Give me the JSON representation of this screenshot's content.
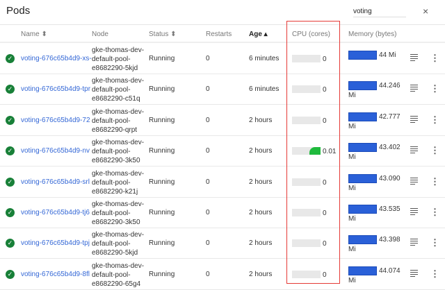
{
  "title": "Pods",
  "search": {
    "value": "voting"
  },
  "close_icon": "×",
  "columns": {
    "name": "Name ⬍",
    "node": "Node",
    "status": "Status ⬍",
    "restarts": "Restarts",
    "age": "Age ▴",
    "cpu": "CPU (cores)",
    "memory": "Memory (bytes)"
  },
  "colors": {
    "link": "#3367d6",
    "ok": "#188038",
    "cpu_fill": "#1fba3d",
    "memory_bar": "#2a60d8",
    "highlight": "#e53935"
  },
  "rows": [
    {
      "name": "voting-676c65b4d9-xs-",
      "node": "gke-thomas-dev-default-pool-e8682290-5kjd",
      "status": "Running",
      "restarts": "0",
      "age": "6 minutes",
      "cpu": "0",
      "cpu_fraction": 0,
      "mem1": "44 Mi",
      "mem2": ""
    },
    {
      "name": "voting-676c65b4d9-tpr",
      "node": "gke-thomas-dev-default-pool-e8682290-c51q",
      "status": "Running",
      "restarts": "0",
      "age": "6 minutes",
      "cpu": "0",
      "cpu_fraction": 0,
      "mem1": "44.246",
      "mem2": "Mi"
    },
    {
      "name": "voting-676c65b4d9-72",
      "node": "gke-thomas-dev-default-pool-e8682290-qrpt",
      "status": "Running",
      "restarts": "0",
      "age": "2 hours",
      "cpu": "0",
      "cpu_fraction": 0,
      "mem1": "42.777",
      "mem2": "Mi"
    },
    {
      "name": "voting-676c65b4d9-nv",
      "node": "gke-thomas-dev-default-pool-e8682290-3k50",
      "status": "Running",
      "restarts": "0",
      "age": "2 hours",
      "cpu": "0.01",
      "cpu_fraction": 0.4,
      "mem1": "43.402",
      "mem2": "Mi"
    },
    {
      "name": "voting-676c65b4d9-srl",
      "node": "gke-thomas-dev-default-pool-e8682290-k21j",
      "status": "Running",
      "restarts": "0",
      "age": "2 hours",
      "cpu": "0",
      "cpu_fraction": 0,
      "mem1": "43.090",
      "mem2": "Mi"
    },
    {
      "name": "voting-676c65b4d9-tj6",
      "node": "gke-thomas-dev-default-pool-e8682290-3k50",
      "status": "Running",
      "restarts": "0",
      "age": "2 hours",
      "cpu": "0",
      "cpu_fraction": 0,
      "mem1": "43.535",
      "mem2": "Mi"
    },
    {
      "name": "voting-676c65b4d9-tpj",
      "node": "gke-thomas-dev-default-pool-e8682290-5kjd",
      "status": "Running",
      "restarts": "0",
      "age": "2 hours",
      "cpu": "0",
      "cpu_fraction": 0,
      "mem1": "43.398",
      "mem2": "Mi"
    },
    {
      "name": "voting-676c65b4d9-8fl",
      "node": "gke-thomas-dev-default-pool-e8682290-65g4",
      "status": "Running",
      "restarts": "0",
      "age": "2 hours",
      "cpu": "0",
      "cpu_fraction": 0,
      "mem1": "44.074",
      "mem2": "Mi"
    }
  ]
}
